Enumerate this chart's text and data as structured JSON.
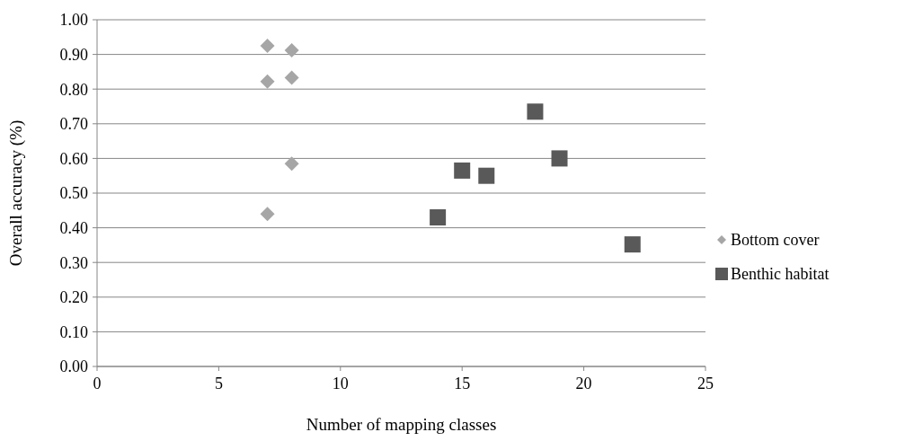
{
  "chart_data": {
    "type": "scatter",
    "xlabel": "Number of mapping classes",
    "ylabel": "Overall accuracy (%)",
    "xlim": [
      0,
      25
    ],
    "xticks": [
      0,
      5,
      10,
      15,
      20,
      25
    ],
    "ylim": [
      0,
      1
    ],
    "yticks": [
      {
        "value": 0,
        "label": "0.00"
      },
      {
        "value": 0.1,
        "label": "0.10"
      },
      {
        "value": 0.2,
        "label": "0.20"
      },
      {
        "value": 0.3,
        "label": "0.30"
      },
      {
        "value": 0.4,
        "label": "0.40"
      },
      {
        "value": 0.5,
        "label": "0.50"
      },
      {
        "value": 0.6,
        "label": "0.60"
      },
      {
        "value": 0.7,
        "label": "0.70"
      },
      {
        "value": 0.8,
        "label": "0.80"
      },
      {
        "value": 0.9,
        "label": "0.90"
      },
      {
        "value": 1,
        "label": "1.00"
      }
    ],
    "grid": "y",
    "legend": "right",
    "series": [
      {
        "name": "Bottom cover",
        "color": "#a6a6a6",
        "marker": "diamond",
        "x": [
          7,
          8,
          7,
          8,
          8,
          7
        ],
        "values": [
          0.925,
          0.912,
          0.822,
          0.833,
          0.585,
          0.44
        ]
      },
      {
        "name": "Benthic habitat",
        "color": "#595959",
        "marker": "square",
        "x": [
          14,
          15,
          16,
          18,
          19,
          22
        ],
        "values": [
          0.43,
          0.565,
          0.55,
          0.735,
          0.6,
          0.352
        ]
      }
    ]
  }
}
